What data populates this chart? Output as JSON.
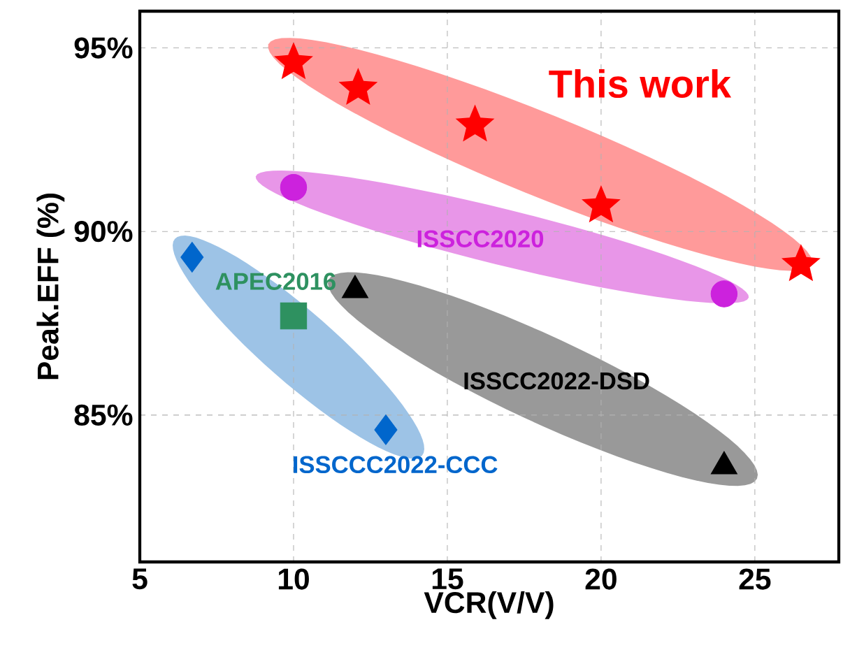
{
  "chart_data": {
    "type": "scatter",
    "xlabel": "VCR(V/V)",
    "ylabel": "Peak.EFF (%)",
    "xlim": [
      5,
      27.73
    ],
    "ylim": [
      81,
      96
    ],
    "xticks": [
      5,
      10,
      15,
      20,
      25
    ],
    "yticks": [
      {
        "value": 85,
        "label": "85%"
      },
      {
        "value": 90,
        "label": "90%"
      },
      {
        "value": 95,
        "label": "95%"
      }
    ],
    "grid": true,
    "legend": false,
    "series": [
      {
        "name": "This work",
        "color": "#ff0000",
        "marker": "star",
        "x": [
          10,
          12.1,
          15.9,
          20,
          26.5
        ],
        "values": [
          94.6,
          93.9,
          92.9,
          90.7,
          89.1
        ]
      },
      {
        "name": "ISSCC2020",
        "color": "#cc22dd",
        "marker": "circle",
        "x": [
          10,
          24
        ],
        "values": [
          91.2,
          88.3
        ]
      },
      {
        "name": "APEC2016",
        "color": "#2e9160",
        "marker": "square",
        "x": [
          10
        ],
        "values": [
          87.7
        ]
      },
      {
        "name": "ISSCC2022-DSD",
        "color": "#000000",
        "marker": "triangle",
        "x": [
          12,
          24
        ],
        "values": [
          88.4,
          83.6
        ]
      },
      {
        "name": "ISSCCC2022-CCC",
        "color": "#0066cc",
        "marker": "diamond",
        "x": [
          6.7,
          13
        ],
        "values": [
          89.3,
          84.6
        ]
      }
    ]
  }
}
